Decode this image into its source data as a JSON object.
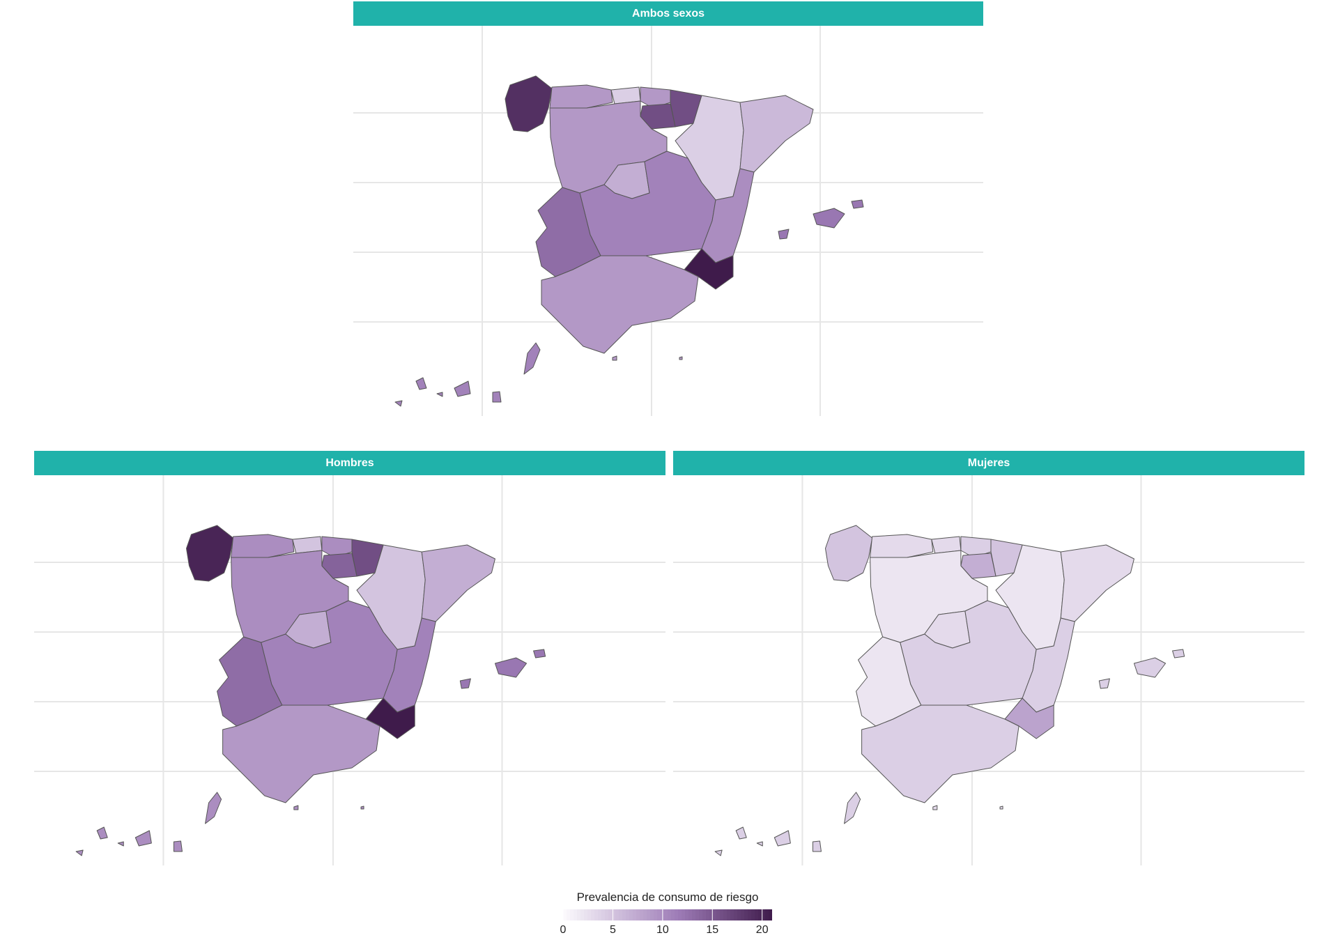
{
  "panels": [
    {
      "key": "ambos",
      "title": "Ambos sexos"
    },
    {
      "key": "hombres",
      "title": "Hombres"
    },
    {
      "key": "mujeres",
      "title": "Mujeres"
    }
  ],
  "legend": {
    "title": "Prevalencia de consumo de riesgo",
    "min": 0,
    "max": 21,
    "ticks": [
      0,
      5,
      10,
      15,
      20
    ],
    "tick_labels": [
      "0",
      "5",
      "10",
      "15",
      "20"
    ],
    "color_low": "#FCFBFD",
    "color_high": "#3F1B4B"
  },
  "regions": [
    "Galicia",
    "Asturias",
    "Cantabria",
    "País Vasco",
    "Navarra",
    "La Rioja",
    "Castilla y León",
    "Aragón",
    "Cataluña",
    "Madrid",
    "Castilla-La Mancha",
    "Extremadura",
    "Comunidad Valenciana",
    "Murcia",
    "Andalucía",
    "Baleares",
    "Canarias",
    "Ceuta",
    "Melilla"
  ],
  "values": {
    "ambos": {
      "Galicia": 19,
      "Asturias": 9,
      "Cantabria": 4,
      "País Vasco": 9,
      "Navarra": 16,
      "La Rioja": 16,
      "Castilla y León": 9,
      "Aragón": 4,
      "Cataluña": 6,
      "Madrid": 7,
      "Castilla-La Mancha": 11,
      "Extremadura": 13,
      "Comunidad Valenciana": 10,
      "Murcia": 21,
      "Andalucía": 9,
      "Baleares": 12,
      "Canarias": 11,
      "Ceuta": 9,
      "Melilla": 9
    },
    "hombres": {
      "Galicia": 20,
      "Asturias": 10,
      "Cantabria": 5,
      "País Vasco": 10,
      "Navarra": 16,
      "La Rioja": 14,
      "Castilla y León": 10,
      "Aragón": 5,
      "Cataluña": 7,
      "Madrid": 7,
      "Castilla-La Mancha": 11,
      "Extremadura": 13,
      "Comunidad Valenciana": 11,
      "Murcia": 21,
      "Andalucía": 9,
      "Baleares": 12,
      "Canarias": 10,
      "Ceuta": 10,
      "Melilla": 10
    },
    "mujeres": {
      "Galicia": 5,
      "Asturias": 3,
      "Cantabria": 3,
      "País Vasco": 4,
      "Navarra": 5,
      "La Rioja": 7,
      "Castilla y León": 2,
      "Aragón": 2,
      "Cataluña": 3,
      "Madrid": 3,
      "Castilla-La Mancha": 4,
      "Extremadura": 2,
      "Comunidad Valenciana": 4,
      "Murcia": 8,
      "Andalucía": 4,
      "Baleares": 4,
      "Canarias": 4,
      "Ceuta": 3,
      "Melilla": 3
    }
  }
}
